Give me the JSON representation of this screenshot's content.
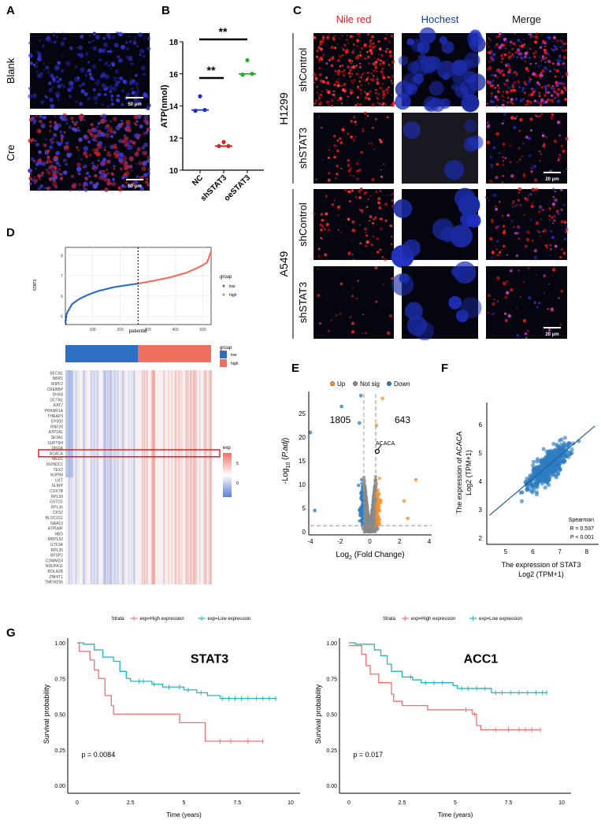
{
  "panels": {
    "A": "A",
    "B": "B",
    "C": "C",
    "D": "D",
    "E": "E",
    "F": "F",
    "G": "G"
  },
  "panelA": {
    "rows": [
      "Blank",
      "Cre"
    ],
    "scale_bar": "50 μm",
    "colors": {
      "nucleus": "#3a3ae0",
      "lipid": "#c02020"
    }
  },
  "panelC": {
    "columns": [
      "Nile red",
      "Hochest",
      "Merge"
    ],
    "column_colors": [
      "#e02020",
      "#1a3a8a",
      "#111111"
    ],
    "cell_lines": [
      "H1299",
      "A549"
    ],
    "rows": [
      "shControl",
      "shSTAT3",
      "shControl",
      "shSTAT3"
    ],
    "scale_bar": "20 μm"
  },
  "chart_data": [
    {
      "id": "B",
      "type": "scatter",
      "ylabel": "ATP(nmol)",
      "categories": [
        "NC",
        "shSTAT3",
        "oeSTAT3"
      ],
      "colors": [
        "#1a2ad0",
        "#e01a1a",
        "#20b020"
      ],
      "values": [
        [
          14.6,
          13.7,
          13.75
        ],
        [
          11.75,
          11.5,
          11.5
        ],
        [
          16.85,
          15.95,
          16.0
        ]
      ],
      "medians": [
        13.75,
        11.5,
        16.0
      ],
      "ylim": [
        10,
        18
      ],
      "yticks": [
        10,
        12,
        14,
        16,
        18
      ],
      "significance": [
        {
          "pair": [
            "NC",
            "oeSTAT3"
          ],
          "label": "**"
        },
        {
          "pair": [
            "NC",
            "shSTAT3"
          ],
          "label": "**"
        }
      ]
    },
    {
      "id": "D-line",
      "type": "scatter",
      "xlabel": "patientid",
      "ylabel": "STAT3",
      "xticks": [
        100,
        200,
        300,
        400,
        500
      ],
      "yticks": [
        5,
        6,
        7,
        8
      ],
      "xlim": [
        1,
        530
      ],
      "ylim": [
        4.6,
        8.4
      ],
      "cutoff": 265,
      "grid": true,
      "legend": {
        "title": "group",
        "entries": [
          "low",
          "high"
        ],
        "colors": [
          "#2e6fc4",
          "#f07060"
        ]
      },
      "quantiles": [
        [
          1,
          4.7
        ],
        [
          5,
          5.1
        ],
        [
          10,
          5.25
        ],
        [
          25,
          5.6
        ],
        [
          50,
          5.85
        ],
        [
          80,
          6.05
        ],
        [
          120,
          6.25
        ],
        [
          180,
          6.45
        ],
        [
          265,
          6.62
        ],
        [
          320,
          6.75
        ],
        [
          380,
          6.92
        ],
        [
          440,
          7.15
        ],
        [
          490,
          7.45
        ],
        [
          515,
          7.65
        ],
        [
          530,
          8.2
        ]
      ]
    },
    {
      "id": "D-heatmap",
      "type": "heatmap",
      "group_legend": {
        "title": "group",
        "entries": [
          "low",
          "high"
        ],
        "colors": [
          "#2e6fc4",
          "#f07060"
        ]
      },
      "exp_legend": {
        "title": "exp",
        "ticks": [
          "5",
          "0"
        ],
        "colors": [
          "#f07060",
          "#ffffff",
          "#5b7fd0"
        ]
      },
      "genes": [
        "BECN1",
        "NBR1",
        "WIPF2",
        "CREBBP",
        "DHX8",
        "DCTN1",
        "KAT7",
        "PRKAR1A",
        "THRAP3",
        "EP300",
        "RNF20",
        "ATP1A1",
        "SF3A1",
        "SUPT6H",
        "SIN3A",
        "ACACA",
        "MED1",
        "RUNDC1",
        "TEX2",
        "NUP98",
        "UXT",
        "SLIRP",
        "COX7B",
        "RPL39",
        "GSTO1",
        "RPL36",
        "CKS2",
        "BLOC1S1",
        "NAA10",
        "ATP5MF",
        "HBD",
        "MRPL52",
        "GTF3A",
        "RPL35",
        "BFSP2",
        "COMMD3",
        "NDUFA11",
        "BOLA2B",
        "ZNHIT1",
        "TMEM256"
      ],
      "highlight": "ACACA",
      "highlight_color": "#e02020"
    },
    {
      "id": "E",
      "type": "scatter",
      "xlabel": "Log2 (Fold Change)",
      "ylabel": "-Log10 (P.adj)",
      "xlim": [
        -4,
        4
      ],
      "ylim": [
        0,
        29
      ],
      "xticks": [
        -4,
        -2,
        0,
        2,
        4
      ],
      "yticks": [
        0,
        5,
        10,
        15,
        20,
        25
      ],
      "legend": {
        "entries": [
          "Up",
          "Not sig",
          "Down"
        ],
        "colors": [
          "#f5902a",
          "#888888",
          "#2e7cc0"
        ]
      },
      "count_down": "1805",
      "count_up": "643",
      "annotation": "ACACA",
      "acaca": [
        0.5,
        17
      ],
      "thresholds": {
        "fc": [
          -0.4,
          0.4
        ],
        "padj_log": 1.3
      },
      "notable_points": [
        [
          -4,
          21
        ],
        [
          -3.7,
          4.5
        ],
        [
          -1.9,
          26.5
        ],
        [
          -0.6,
          28.8
        ],
        [
          -0.7,
          23
        ],
        [
          0.85,
          28.2
        ],
        [
          0.45,
          22.5
        ],
        [
          3.1,
          11
        ],
        [
          2.55,
          2.8
        ],
        [
          2.3,
          6.5
        ]
      ]
    },
    {
      "id": "F",
      "type": "scatter",
      "xlabel": "The expression of STAT3",
      "xlabel2": "Log2 (TPM+1)",
      "ylabel": "The expression of ACACA",
      "ylabel2": "Log2 (TPM+1)",
      "xlim": [
        4.3,
        8.4
      ],
      "ylim": [
        1.9,
        6.7
      ],
      "xticks": [
        5,
        6,
        7,
        8
      ],
      "yticks": [
        2,
        3,
        4,
        5,
        6
      ],
      "stats": {
        "method": "Spearman",
        "r_label": "R = 0.597",
        "p_label": "P < 0.001"
      },
      "fit": {
        "x": [
          4.4,
          8.3
        ],
        "y": [
          2.8,
          5.95
        ]
      },
      "color": "#2e7cc0"
    },
    {
      "id": "G1",
      "type": "line",
      "title": "STAT3",
      "xlabel": "Time (years)",
      "ylabel": "Survival probability",
      "p_label": "p = 0.0084",
      "xticks": [
        0,
        2.5,
        5,
        7.5,
        10
      ],
      "yticks": [
        "0.00",
        "0.25",
        "0.50",
        "0.75",
        "1.00"
      ],
      "xlim": [
        0,
        10
      ],
      "ylim": [
        0,
        1
      ],
      "legend": {
        "title": "Strata",
        "entries": [
          "exp=High expression",
          "exp=Low expression"
        ],
        "colors": [
          "#f07070",
          "#20b8b8"
        ]
      },
      "series": [
        {
          "name": "exp=High expression",
          "steps": [
            [
              0,
              1
            ],
            [
              0.1,
              0.94
            ],
            [
              0.6,
              0.88
            ],
            [
              0.8,
              0.81
            ],
            [
              1.0,
              0.75
            ],
            [
              1.3,
              0.63
            ],
            [
              1.6,
              0.56
            ],
            [
              1.7,
              0.5
            ],
            [
              4.8,
              0.44
            ],
            [
              6.0,
              0.31
            ],
            [
              8.7,
              0.31
            ]
          ],
          "censor": [
            6.7,
            7.2,
            8.0,
            8.7
          ]
        },
        {
          "name": "exp=Low expression",
          "steps": [
            [
              0,
              1
            ],
            [
              0.3,
              0.99
            ],
            [
              0.8,
              0.95
            ],
            [
              1.2,
              0.9
            ],
            [
              1.7,
              0.87
            ],
            [
              2.0,
              0.8
            ],
            [
              2.3,
              0.75
            ],
            [
              2.5,
              0.73
            ],
            [
              3.5,
              0.71
            ],
            [
              4.0,
              0.69
            ],
            [
              5.0,
              0.67
            ],
            [
              5.6,
              0.65
            ],
            [
              6.1,
              0.63
            ],
            [
              6.7,
              0.61
            ],
            [
              9.3,
              0.61
            ]
          ],
          "censor": [
            2.9,
            3.1,
            3.6,
            4.3,
            4.8,
            5.2,
            5.8,
            6.8,
            7.1,
            7.4,
            7.7,
            8.0,
            8.4,
            8.7,
            9.0,
            9.3
          ]
        }
      ]
    },
    {
      "id": "G2",
      "type": "line",
      "title": "ACC1",
      "xlabel": "Time (years)",
      "ylabel": "Survival probability",
      "p_label": "p = 0.017",
      "xticks": [
        0,
        2.5,
        5,
        7.5,
        10
      ],
      "yticks": [
        "0.00",
        "0.25",
        "0.50",
        "0.75",
        "1.00"
      ],
      "xlim": [
        0,
        10
      ],
      "ylim": [
        0,
        1
      ],
      "legend": {
        "title": "Strata",
        "entries": [
          "exp=High expression",
          "exp=Low expression"
        ],
        "colors": [
          "#f07070",
          "#20b8b8"
        ]
      },
      "series": [
        {
          "name": "exp=High expression",
          "steps": [
            [
              0,
              0.98
            ],
            [
              0.6,
              0.92
            ],
            [
              0.8,
              0.84
            ],
            [
              1.0,
              0.78
            ],
            [
              1.4,
              0.72
            ],
            [
              2.0,
              0.64
            ],
            [
              2.1,
              0.59
            ],
            [
              2.5,
              0.56
            ],
            [
              3.7,
              0.53
            ],
            [
              5.8,
              0.5
            ],
            [
              6.0,
              0.42
            ],
            [
              6.2,
              0.39
            ],
            [
              9.0,
              0.39
            ]
          ],
          "censor": [
            5.5,
            5.9,
            6.9,
            7.5,
            8.0,
            8.3,
            8.6,
            9.0
          ]
        },
        {
          "name": "exp=Low expression",
          "steps": [
            [
              0,
              1
            ],
            [
              0.3,
              0.99
            ],
            [
              1.2,
              0.95
            ],
            [
              1.5,
              0.91
            ],
            [
              1.8,
              0.85
            ],
            [
              2.0,
              0.8
            ],
            [
              2.5,
              0.76
            ],
            [
              3.0,
              0.74
            ],
            [
              3.4,
              0.72
            ],
            [
              4.9,
              0.7
            ],
            [
              5.1,
              0.68
            ],
            [
              6.7,
              0.65
            ],
            [
              9.3,
              0.65
            ]
          ],
          "censor": [
            2.9,
            3.6,
            4.0,
            4.4,
            5.3,
            5.6,
            6.0,
            6.4,
            6.9,
            7.2,
            7.6,
            8.0,
            8.4,
            8.8,
            9.1,
            9.3
          ]
        }
      ]
    }
  ]
}
